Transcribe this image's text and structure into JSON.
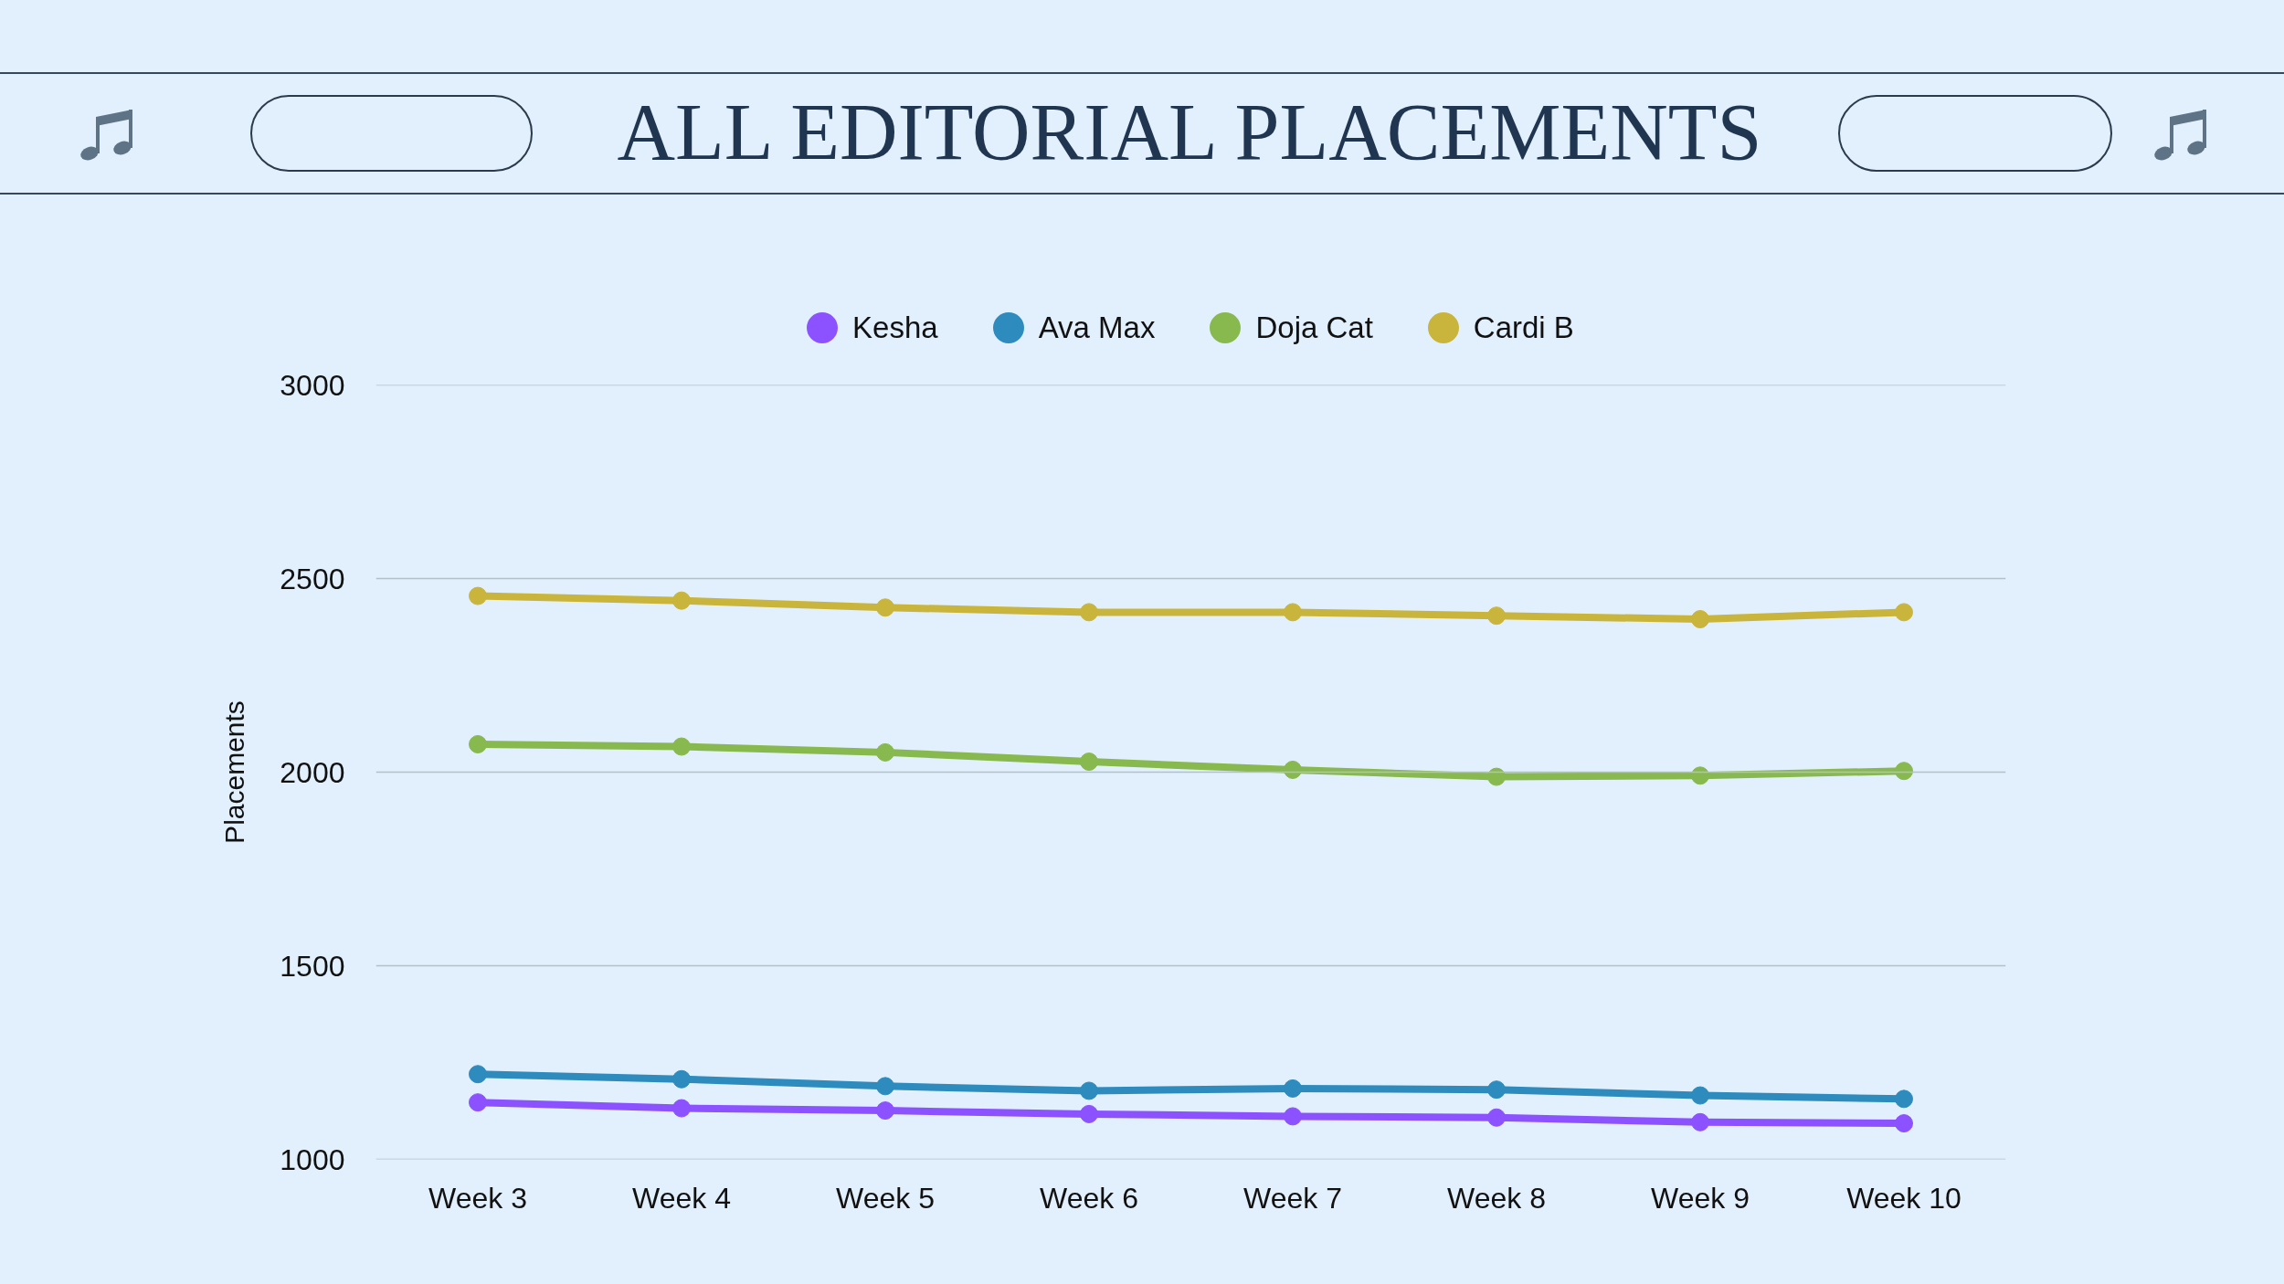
{
  "chart_data": {
    "type": "line",
    "title": "ALL EDITORIAL PLACEMENTS",
    "ylabel": "Placements",
    "categories": [
      "Week 3",
      "Week 4",
      "Week 5",
      "Week 6",
      "Week 7",
      "Week 8",
      "Week 9",
      "Week 10"
    ],
    "series": [
      {
        "name": "Kesha",
        "color": "#8c52ff",
        "values": [
          1147,
          1132,
          1126,
          1117,
          1111,
          1108,
          1096,
          1093
        ]
      },
      {
        "name": "Ava Max",
        "color": "#2e8bbd",
        "values": [
          1220,
          1207,
          1189,
          1177,
          1183,
          1180,
          1165,
          1156
        ]
      },
      {
        "name": "Doja Cat",
        "color": "#88b94f",
        "values": [
          2072,
          2066,
          2051,
          2027,
          2006,
          1988,
          1991,
          2003
        ]
      },
      {
        "name": "Cardi B",
        "color": "#c9b53c",
        "values": [
          2455,
          2443,
          2425,
          2413,
          2413,
          2404,
          2395,
          2413
        ]
      }
    ],
    "ylim": [
      1000,
      3000
    ],
    "yticks": [
      1000,
      1500,
      2000,
      2500,
      3000
    ],
    "grid": "y",
    "legend": "top",
    "marker": "circle",
    "line_style": "solid"
  }
}
